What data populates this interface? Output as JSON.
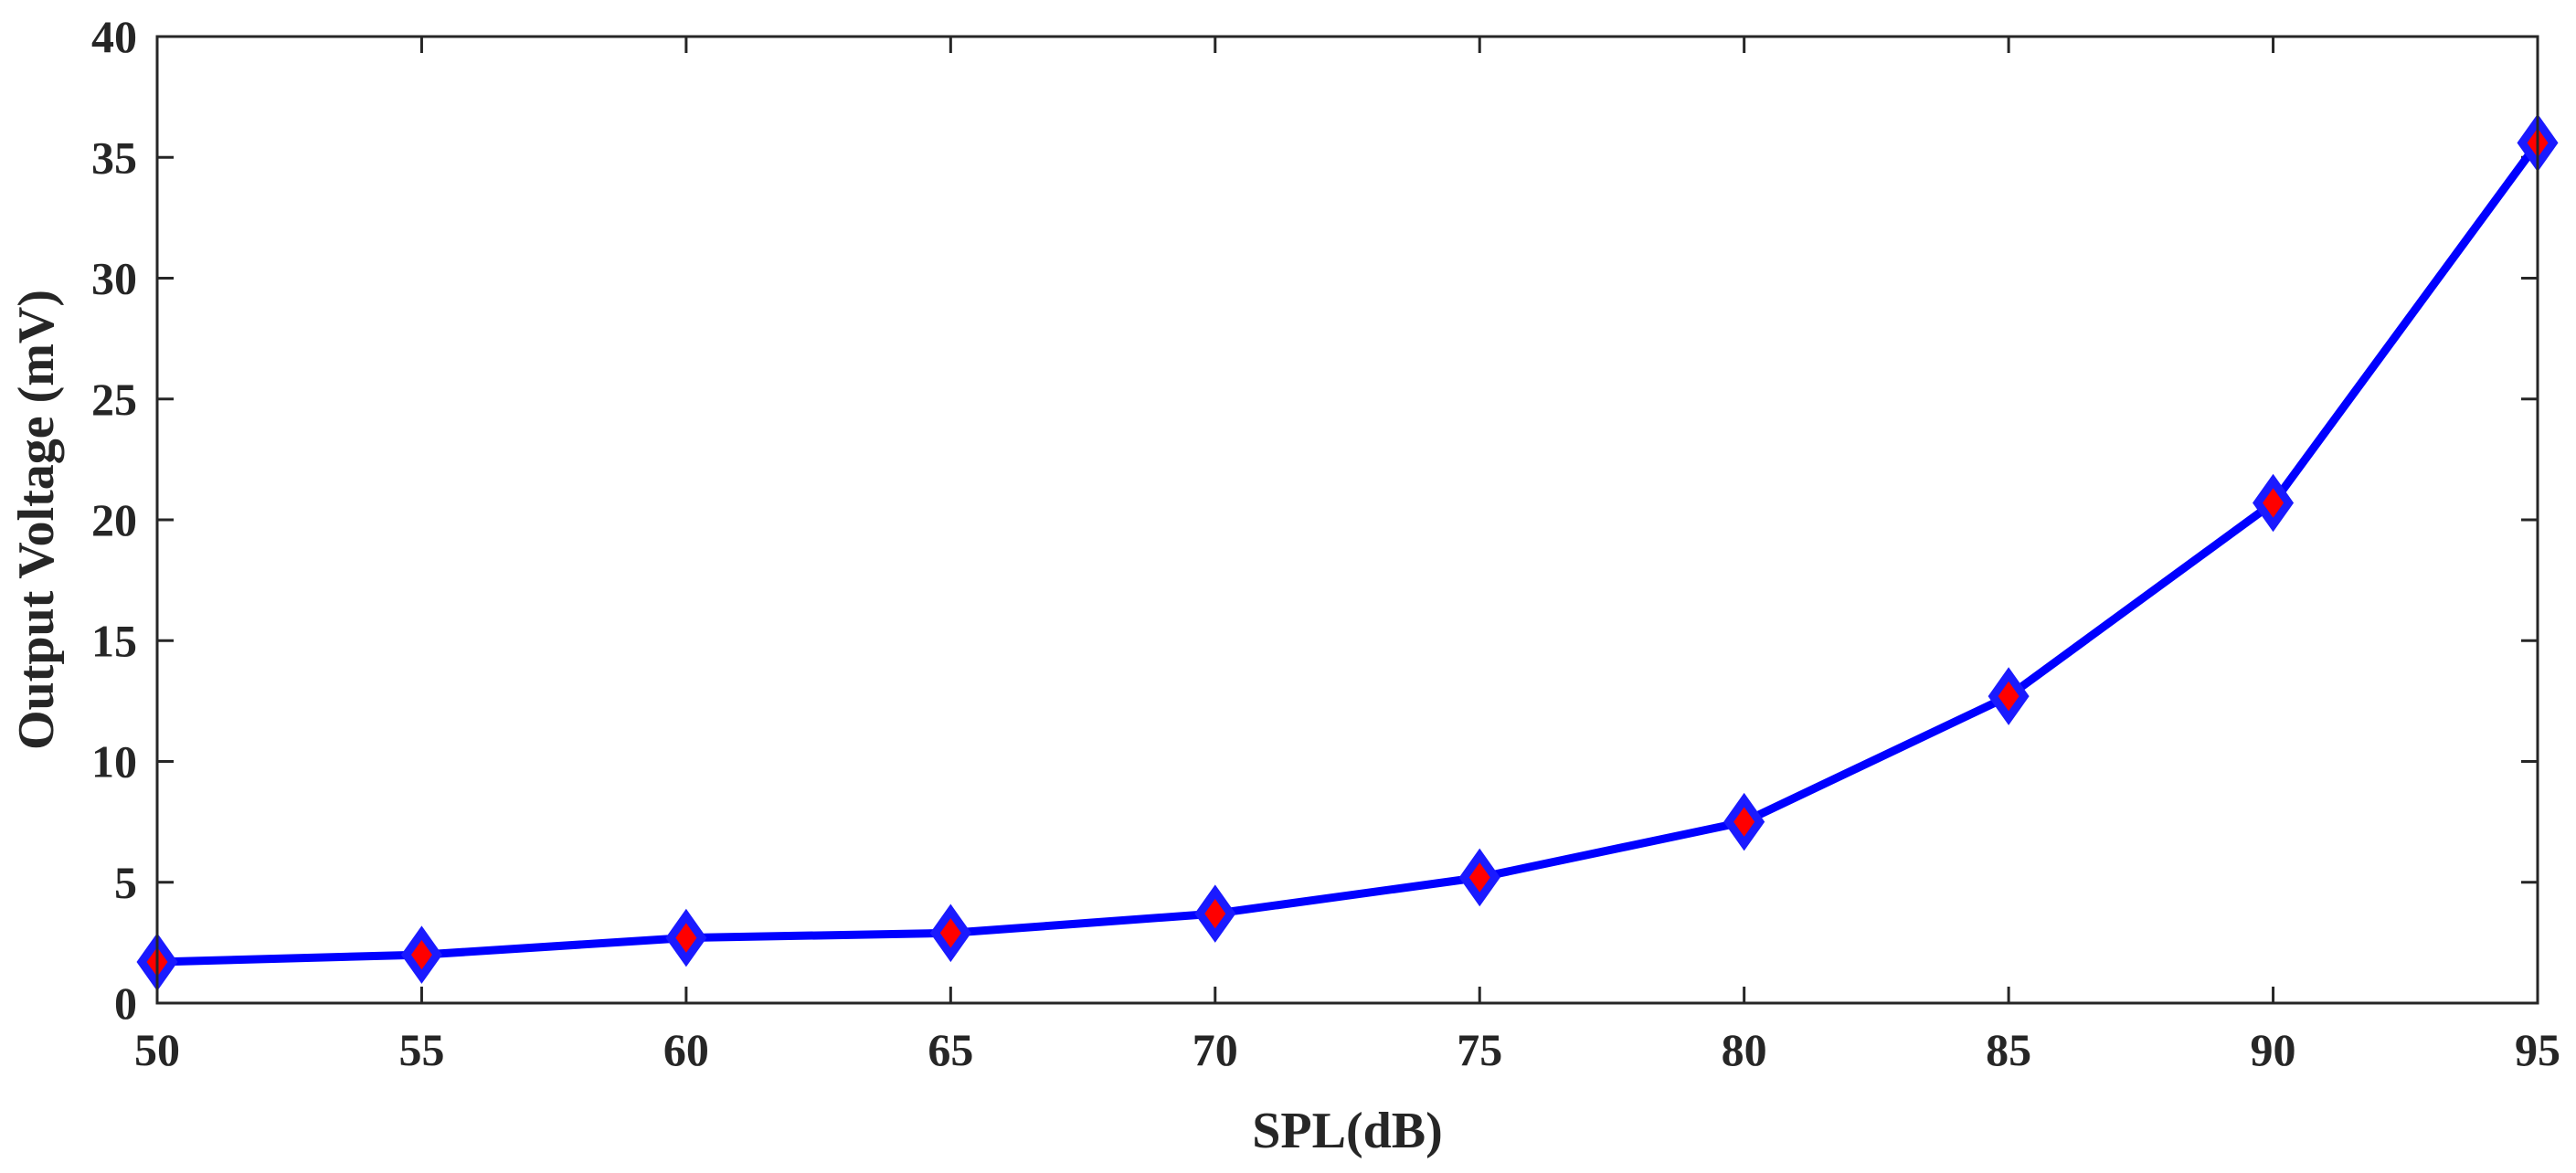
{
  "chart_data": {
    "type": "line",
    "title": "",
    "xlabel": "SPL(dB)",
    "ylabel": "Output Voltage (mV)",
    "xlim": [
      50,
      95
    ],
    "ylim": [
      0,
      40
    ],
    "xticks": [
      50,
      55,
      60,
      65,
      70,
      75,
      80,
      85,
      90,
      95
    ],
    "yticks": [
      0,
      5,
      10,
      15,
      20,
      25,
      30,
      35,
      40
    ],
    "x": [
      50,
      55,
      60,
      65,
      70,
      75,
      80,
      85,
      90,
      95
    ],
    "series": [
      {
        "values": [
          1.7,
          2.0,
          2.7,
          2.9,
          3.7,
          5.2,
          7.5,
          12.7,
          20.7,
          35.6
        ],
        "line_color": "#0000ff",
        "marker": "diamond",
        "marker_edge_color": "#1a1aff",
        "marker_face_color": "#ff0000"
      }
    ],
    "grid": false,
    "legend": false,
    "box": true
  }
}
